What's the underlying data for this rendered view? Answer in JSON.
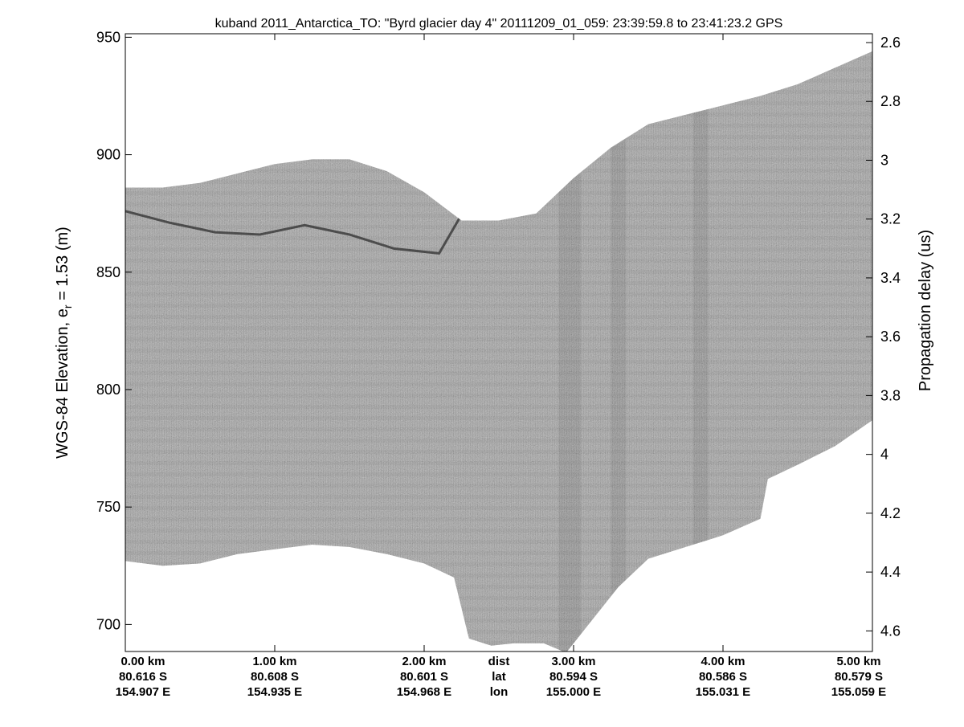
{
  "chart_data": {
    "type": "heatmap",
    "title": "kuband 2011_Antarctica_TO: \"Byrd glacier day 4\"  20111209_01_059: 23:39:59.8 to 23:41:23.2 GPS",
    "ylabel_left": "WGS-84 Elevation, e",
    "ylabel_left_subscript": "r",
    "ylabel_left_suffix": " = 1.53 (m)",
    "ylabel_right": "Propagation delay (us)",
    "ylim_left": [
      688.5,
      951.5
    ],
    "yticks_left": [
      700,
      750,
      800,
      850,
      900,
      950
    ],
    "ylim_right": [
      2.57,
      4.67
    ],
    "yticks_right": [
      2.6,
      2.8,
      3,
      3.2,
      3.4,
      3.6,
      3.8,
      4,
      4.2,
      4.4,
      4.6
    ],
    "xlim_km": [
      0,
      5
    ],
    "x_ticks": [
      {
        "dist": "0.00 km",
        "lat": "80.616 S",
        "lon": "154.907 E"
      },
      {
        "dist": "1.00 km",
        "lat": "80.608 S",
        "lon": "154.935 E"
      },
      {
        "dist": "2.00 km",
        "lat": "80.601 S",
        "lon": "154.968 E"
      },
      {
        "dist": "3.00 km",
        "lat": "80.594 S",
        "lon": "155.000 E"
      },
      {
        "dist": "4.00 km",
        "lat": "80.586 S",
        "lon": "155.031 E"
      },
      {
        "dist": "5.00 km",
        "lat": "80.579 S",
        "lon": "155.059 E"
      }
    ],
    "x_legend": {
      "dist": "dist",
      "lat": "lat",
      "lon": "lon"
    },
    "surface_top_elevation": {
      "km": [
        0,
        0.25,
        0.5,
        0.75,
        1.0,
        1.25,
        1.5,
        1.75,
        2.0,
        2.25,
        2.5,
        2.75,
        3.0,
        3.25,
        3.5,
        3.75,
        4.0,
        4.25,
        4.5,
        4.75,
        5.0
      ],
      "elev": [
        886,
        886,
        888,
        892,
        896,
        898,
        898,
        893,
        884,
        872,
        872,
        875,
        890,
        903,
        913,
        917,
        921,
        925,
        930,
        937,
        944
      ]
    },
    "data_bottom_elevation": {
      "km": [
        0,
        0.25,
        0.5,
        0.75,
        1.0,
        1.25,
        1.5,
        1.75,
        2.0,
        2.2,
        2.3,
        2.45,
        2.6,
        2.8,
        2.95,
        3.1,
        3.3,
        3.5,
        3.75,
        4.0,
        4.25,
        4.3,
        4.5,
        4.75,
        5.0
      ],
      "elev": [
        727,
        725,
        726,
        730,
        732,
        734,
        733,
        730,
        726,
        720,
        694,
        691,
        692,
        692,
        688,
        700,
        716,
        728,
        733,
        738,
        745,
        762,
        768,
        776,
        787
      ]
    },
    "bright_reflector_elevation": {
      "km": [
        0,
        0.3,
        0.6,
        0.9,
        1.2,
        1.5,
        1.8,
        2.1,
        2.3
      ],
      "elev": [
        876,
        871,
        867,
        866,
        870,
        866,
        860,
        858,
        880
      ]
    },
    "dark_band_km": [
      [
        2.9,
        3.05
      ],
      [
        3.25,
        3.35
      ],
      [
        3.8,
        3.9
      ]
    ],
    "colors": {
      "background": "#ffffff",
      "radar_mid": "#8a8a8a",
      "radar_dark": "#4a4a4a",
      "axis": "#000000"
    }
  }
}
